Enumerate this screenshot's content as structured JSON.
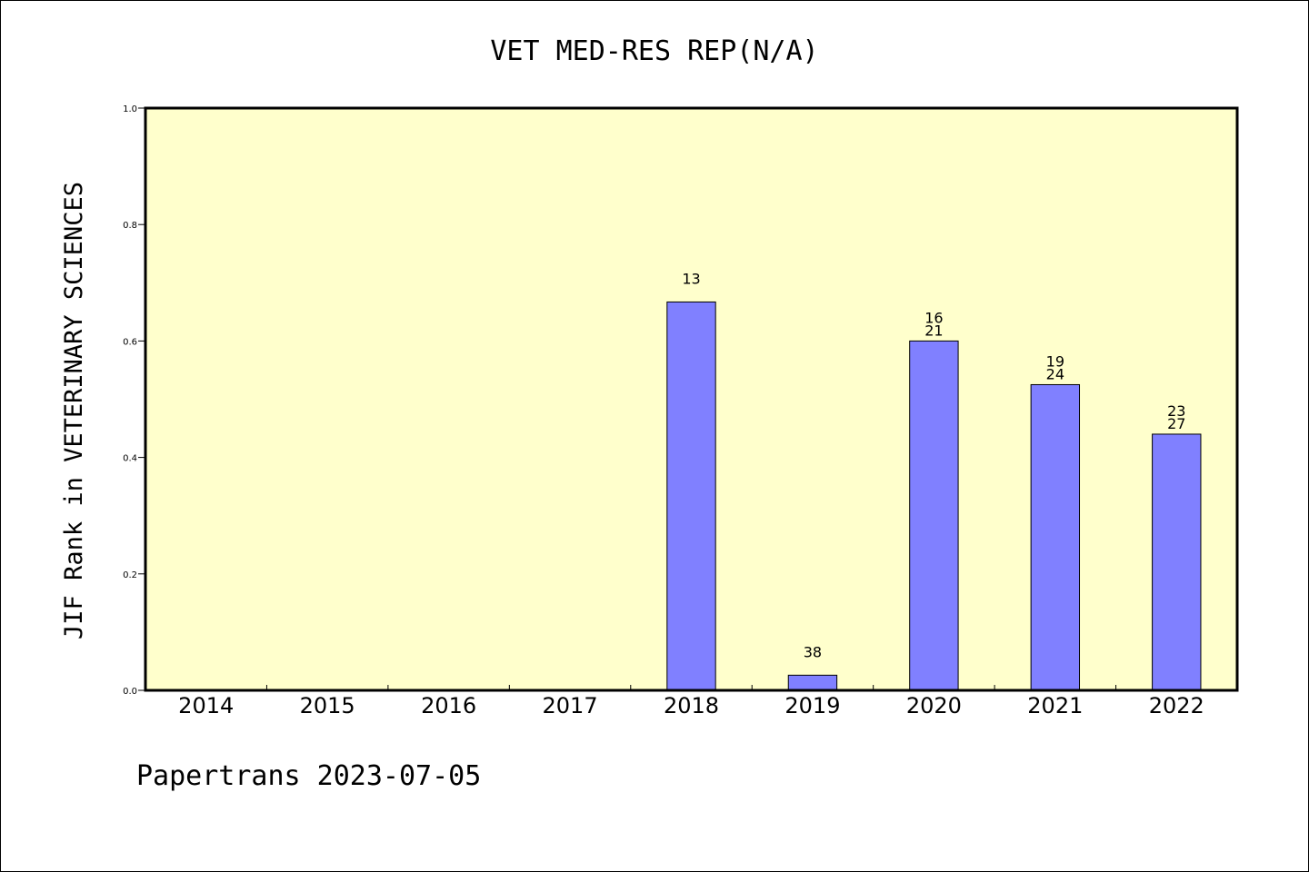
{
  "chart_data": {
    "type": "bar",
    "title": "VET MED-RES REP(N/A)",
    "xlabel": "",
    "ylabel": "JIF Rank in VETERINARY SCIENCES",
    "ylim": [
      0,
      1.0
    ],
    "yticks": [
      "0.0",
      "0.2",
      "0.4",
      "0.6",
      "0.8",
      "1.0"
    ],
    "categories": [
      "2014",
      "2015",
      "2016",
      "2017",
      "2018",
      "2019",
      "2020",
      "2021",
      "2022"
    ],
    "values": [
      null,
      null,
      null,
      null,
      0.667,
      0.026,
      0.6,
      0.525,
      0.44
    ],
    "bar_labels": [
      [],
      [],
      [],
      [],
      [
        "13"
      ],
      [
        "38"
      ],
      [
        "16",
        "21"
      ],
      [
        "19",
        "24"
      ],
      [
        "23",
        "27"
      ]
    ],
    "grid": false,
    "legend": "none",
    "colors": {
      "plot_background": "#ffffcc",
      "bar_fill": "#8080ff",
      "bar_stroke": "#000000",
      "axis": "#000000"
    }
  },
  "footer": "Papertrans 2023-07-05"
}
